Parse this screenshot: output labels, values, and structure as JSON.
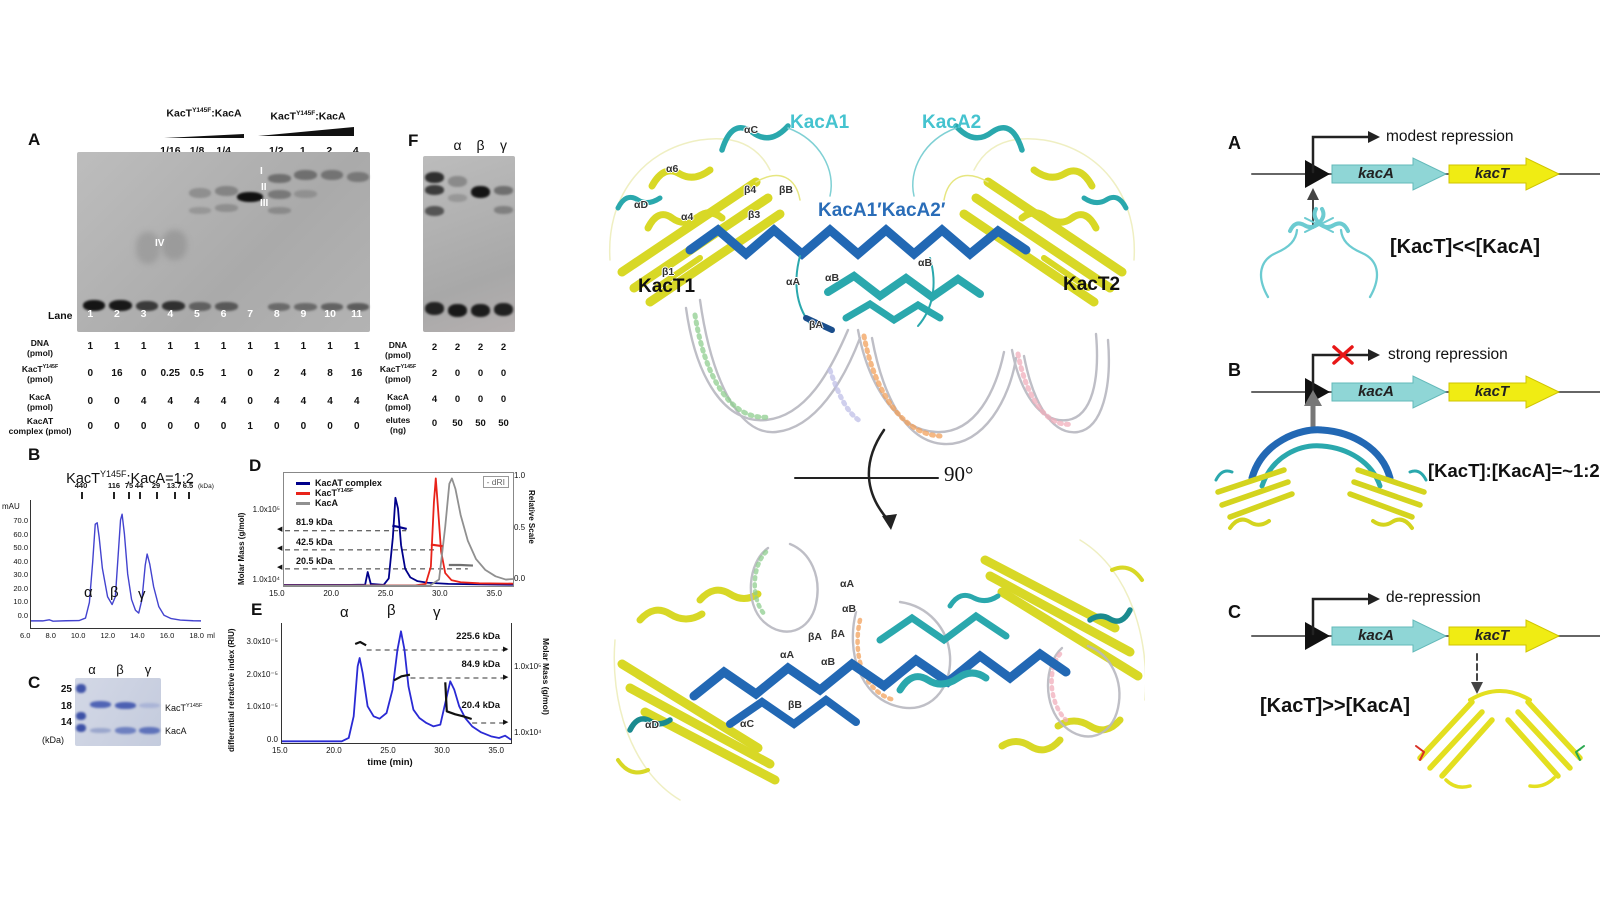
{
  "panels": {
    "A": "A",
    "B": "B",
    "C": "C",
    "D": "D",
    "E": "E",
    "F": "F"
  },
  "panelA": {
    "titration1": {
      "pre": "KacT",
      "sup": "Y145F",
      "post": ":KacA"
    },
    "titration2": {
      "pre": "KacT",
      "sup": "Y145F",
      "post": ":KacA"
    },
    "ratios1": [
      "1/16",
      "1/8",
      "1/4"
    ],
    "ratios2": [
      "1/2",
      "1",
      "2",
      "4"
    ],
    "band_I": "I",
    "band_II": "II",
    "band_III": "III",
    "band_IV": "IV",
    "lane_word": "Lane",
    "lanes": [
      "1",
      "2",
      "3",
      "4",
      "5",
      "6",
      "7",
      "8",
      "9",
      "10",
      "11"
    ],
    "rows": [
      {
        "l1": "DNA",
        "sup": "",
        "l2": "(pmol)",
        "values": [
          "1",
          "1",
          "1",
          "1",
          "1",
          "1",
          "1",
          "1",
          "1",
          "1",
          "1"
        ]
      },
      {
        "l1": "KacT",
        "sup": "Y145F",
        "l2": "(pmol)",
        "values": [
          "0",
          "16",
          "0",
          "0.25",
          "0.5",
          "1",
          "0",
          "2",
          "4",
          "8",
          "16"
        ]
      },
      {
        "l1": "KacA",
        "sup": "",
        "l2": "(pmol)",
        "values": [
          "0",
          "0",
          "4",
          "4",
          "4",
          "4",
          "0",
          "4",
          "4",
          "4",
          "4"
        ]
      },
      {
        "l1": "KacAT",
        "sup": "",
        "l2": "complex (pmol)",
        "values": [
          "0",
          "0",
          "0",
          "0",
          "0",
          "0",
          "1",
          "0",
          "0",
          "0",
          "0"
        ]
      }
    ]
  },
  "panelF": {
    "lane_headers": [
      "α",
      "β",
      "γ"
    ],
    "rows": [
      {
        "l1": "DNA",
        "sup": "",
        "l2": "(pmol)",
        "values": [
          "2",
          "2",
          "2",
          "2"
        ]
      },
      {
        "l1": "KacT",
        "sup": "Y145F",
        "l2": "(pmol)",
        "values": [
          "2",
          "0",
          "0",
          "0"
        ]
      },
      {
        "l1": "KacA",
        "sup": "",
        "l2": "(pmol)",
        "values": [
          "4",
          "0",
          "0",
          "0"
        ]
      },
      {
        "l1": "elutes",
        "sup": "",
        "l2": "(ng)",
        "values": [
          "0",
          "50",
          "50",
          "50"
        ]
      }
    ]
  },
  "panelC": {
    "lanes": [
      "α",
      "β",
      "γ"
    ],
    "markers": [
      "25",
      "18",
      "14"
    ],
    "unit": "(kDa)",
    "band1": {
      "pre": "KacT",
      "sup": "Y145F"
    },
    "band2": "KacA"
  },
  "structure": {
    "kacA1": "KacA1",
    "kacA2": "KacA2",
    "kacA_dimer": "KacA1′KacA2′",
    "kacT1": "KacT1",
    "kacT2": "KacT2",
    "rotation": "90°",
    "top_small": [
      "αC",
      "α6",
      "β4",
      "βB",
      "αD",
      "α4",
      "β3",
      "β1",
      "αA",
      "αB",
      "αB",
      "βA"
    ],
    "bottom_small": [
      "αA",
      "αB",
      "βA",
      "βA",
      "αA",
      "αB",
      "βB",
      "αC",
      "αD"
    ]
  },
  "models": {
    "A": {
      "label": "A",
      "outcome": "modest repression",
      "kacA": "kacA",
      "kacT": "kacT",
      "relation": "[KacT]<<[KacA]"
    },
    "B": {
      "label": "B",
      "outcome": "strong repression",
      "kacA": "kacA",
      "kacT": "kacT",
      "relation": "[KacT]:[KacA]=~1:2"
    },
    "C": {
      "label": "C",
      "outcome": "de-repression",
      "kacA": "kacA",
      "kacT": "kacT",
      "relation": "[KacT]>>[KacA]"
    }
  },
  "colors": {
    "kacA_gene": "#8fd6d6",
    "kacT_gene": "#f0ec13",
    "structure_yellow": "#d8d826",
    "structure_teal": "#2aa8ad",
    "structure_blue": "#2268b4",
    "uv_trace": "#4343cf",
    "mals_blue": "#00008b",
    "mals_red": "#e8231a",
    "mals_gray": "#909090",
    "x_mark_red": "#e81717"
  },
  "chart_data": [
    {
      "id": "panelB-sec",
      "type": "line",
      "title": {
        "pre": "KacT",
        "sup": "Y145F",
        "post": ":KacA=1:2"
      },
      "ylabel": "mAU",
      "xunit": "ml",
      "marker_unit": "(kDa)",
      "yticks": [
        "70.0",
        "60.0",
        "50.0",
        "40.0",
        "30.0",
        "20.0",
        "10.0",
        "0.0"
      ],
      "xticks": [
        "6.0",
        "8.0",
        "10.0",
        "12.0",
        "14.0",
        "16.0",
        "18.0"
      ],
      "markers": [
        "440",
        "116",
        "75",
        "44",
        "29",
        "13.7",
        "6.5"
      ],
      "marker_ml": [
        9.7,
        12.2,
        13.3,
        14.1,
        15.4,
        16.8,
        17.9
      ],
      "peaks": [
        "α",
        "β",
        "γ"
      ],
      "xlim": [
        5.7,
        18.8
      ],
      "ylim": [
        -4,
        86
      ],
      "series": [
        {
          "name": "uv-trace",
          "color": "#4343cf",
          "width": 1.4,
          "points": [
            [
              5.7,
              1
            ],
            [
              6.6,
              1
            ],
            [
              7.1,
              1.8
            ],
            [
              7.4,
              0.8
            ],
            [
              8.4,
              1.1
            ],
            [
              9.4,
              1.2
            ],
            [
              9.9,
              3
            ],
            [
              10.2,
              14
            ],
            [
              10.45,
              42
            ],
            [
              10.65,
              69
            ],
            [
              10.8,
              70
            ],
            [
              10.95,
              60
            ],
            [
              11.2,
              38
            ],
            [
              11.6,
              18
            ],
            [
              11.95,
              12.5
            ],
            [
              12.2,
              18
            ],
            [
              12.4,
              45
            ],
            [
              12.6,
              72
            ],
            [
              12.72,
              76
            ],
            [
              12.9,
              62
            ],
            [
              13.15,
              34
            ],
            [
              13.45,
              16
            ],
            [
              13.75,
              8.5
            ],
            [
              14,
              6.5
            ],
            [
              14.25,
              16
            ],
            [
              14.5,
              40
            ],
            [
              14.65,
              48
            ],
            [
              14.85,
              41
            ],
            [
              15.15,
              25
            ],
            [
              15.55,
              11
            ],
            [
              15.95,
              5
            ],
            [
              16.5,
              2.6
            ],
            [
              17.2,
              1.6
            ],
            [
              18.2,
              1.1
            ],
            [
              18.8,
              1
            ]
          ]
        }
      ]
    },
    {
      "id": "panelD-mals",
      "type": "line",
      "legend": [
        {
          "pre": "KacAT complex",
          "sup": ""
        },
        {
          "pre": "KacT",
          "sup": "Y145F"
        },
        {
          "pre": "KacA",
          "sup": ""
        }
      ],
      "legend_colors": [
        "#00008b",
        "#e8231a",
        "#909090"
      ],
      "dri_box": "- dRI",
      "left_label": "Molar Mass (g/mol)",
      "left_ticks": [
        "1.0x10⁵",
        "1.0x10⁴"
      ],
      "right_label": "Relative Scale",
      "right_ticks": [
        "1.0",
        "0.5",
        "0.0"
      ],
      "annotations": [
        "81.9 kDa",
        "42.5 kDa",
        "20.5 kDa"
      ],
      "xticks": [
        "15.0",
        "20.0",
        "25.0",
        "30.0",
        "35.0"
      ],
      "xlim": [
        15,
        37.3
      ],
      "ylim": [
        0,
        105
      ],
      "series": [
        {
          "name": "dash-81.9",
          "color": "#333",
          "width": 1,
          "dash": "5 4",
          "points": [
            [
              15.1,
              51.3
            ],
            [
              26.9,
              51.3
            ]
          ]
        },
        {
          "name": "dash-42.5",
          "color": "#333",
          "width": 1,
          "dash": "5 4",
          "points": [
            [
              15.1,
              33.6
            ],
            [
              29.9,
              33.6
            ]
          ]
        },
        {
          "name": "dash-20.5",
          "color": "#333",
          "width": 1,
          "dash": "5 4",
          "points": [
            [
              15.1,
              15.9
            ],
            [
              32.9,
              15.9
            ]
          ]
        },
        {
          "name": "kacat-complex",
          "color": "#00008b",
          "width": 1.8,
          "points": [
            [
              15,
              1
            ],
            [
              21.5,
              1
            ],
            [
              22.9,
              1.2
            ],
            [
              23.15,
              13
            ],
            [
              23.45,
              2
            ],
            [
              24.7,
              1
            ],
            [
              25.2,
              7
            ],
            [
              25.6,
              45
            ],
            [
              25.85,
              82
            ],
            [
              26.1,
              72
            ],
            [
              26.4,
              38
            ],
            [
              26.8,
              16
            ],
            [
              27.3,
              8
            ],
            [
              28,
              4.5
            ],
            [
              29,
              3
            ],
            [
              31,
              2
            ],
            [
              34,
              1.5
            ],
            [
              37.3,
              1.2
            ]
          ]
        },
        {
          "name": "kact-y145f",
          "color": "#e8231a",
          "width": 1.8,
          "points": [
            [
              15,
              0.6
            ],
            [
              27.8,
              0.6
            ],
            [
              28.8,
              2
            ],
            [
              29.3,
              18
            ],
            [
              29.6,
              78
            ],
            [
              29.78,
              100
            ],
            [
              30,
              72
            ],
            [
              30.3,
              32
            ],
            [
              30.7,
              12
            ],
            [
              31.3,
              5.5
            ],
            [
              32.2,
              3.5
            ],
            [
              34,
              2.5
            ],
            [
              37.3,
              2.2
            ]
          ]
        },
        {
          "name": "kaca",
          "color": "#909090",
          "width": 1.8,
          "points": [
            [
              15,
              0.3
            ],
            [
              29.2,
              0.3
            ],
            [
              30.1,
              6
            ],
            [
              30.7,
              55
            ],
            [
              31.1,
              95
            ],
            [
              31.35,
              100
            ],
            [
              31.7,
              90
            ],
            [
              32.2,
              66
            ],
            [
              32.9,
              42
            ],
            [
              33.7,
              25
            ],
            [
              34.6,
              15
            ],
            [
              35.6,
              9
            ],
            [
              36.6,
              6
            ],
            [
              37.3,
              6.5
            ]
          ]
        },
        {
          "name": "mass-81.9",
          "color": "#00008b",
          "width": 2.2,
          "points": [
            [
              25.55,
              56
            ],
            [
              26.1,
              55
            ],
            [
              26.95,
              53
            ]
          ]
        },
        {
          "name": "mass-42.5",
          "color": "#e8231a",
          "width": 2.2,
          "points": [
            [
              29.3,
              38.5
            ],
            [
              30.45,
              37
            ]
          ]
        },
        {
          "name": "mass-20.5",
          "color": "#707070",
          "width": 2.2,
          "points": [
            [
              31.05,
              19.5
            ],
            [
              32.2,
              19.5
            ],
            [
              33.4,
              19
            ]
          ]
        }
      ]
    },
    {
      "id": "panelE-mals",
      "type": "line",
      "peaks": [
        "α",
        "β",
        "γ"
      ],
      "left_label": "differential refractive index (RIU)",
      "left_ticks": [
        "3.0x10⁻⁵",
        "2.0x10⁻⁵",
        "1.0x10⁻⁵",
        "0.0"
      ],
      "right_label": "Molar Mass (g/mol)",
      "right_ticks": [
        "1.0x10⁵",
        "1.0x10⁴"
      ],
      "xlabel": "time (min)",
      "xticks": [
        "15.0",
        "20.0",
        "25.0",
        "30.0",
        "35.0"
      ],
      "annotations": [
        "225.6 kDa",
        "84.9 kDa",
        "20.4 kDa"
      ],
      "xlim": [
        14.5,
        37.5
      ],
      "ylim": [
        0,
        3.6
      ],
      "series": [
        {
          "name": "dash-225.6",
          "color": "#333",
          "width": 1,
          "dash": "5 4",
          "points": [
            [
              23,
              2.79
            ],
            [
              37.1,
              2.79
            ]
          ]
        },
        {
          "name": "dash-84.9",
          "color": "#333",
          "width": 1,
          "dash": "5 4",
          "points": [
            [
              27.4,
              1.95
            ],
            [
              37.1,
              1.95
            ]
          ]
        },
        {
          "name": "dash-20.4",
          "color": "#333",
          "width": 1,
          "dash": "5 4",
          "points": [
            [
              33.6,
              0.6
            ],
            [
              37.1,
              0.6
            ]
          ]
        },
        {
          "name": "dri-trace",
          "color": "#2a2ad4",
          "width": 1.8,
          "points": [
            [
              14.5,
              0.05
            ],
            [
              20.5,
              0.05
            ],
            [
              21.2,
              0.15
            ],
            [
              21.7,
              0.8
            ],
            [
              22.1,
              2.3
            ],
            [
              22.3,
              2.55
            ],
            [
              22.6,
              2.1
            ],
            [
              23.1,
              1.1
            ],
            [
              23.7,
              0.8
            ],
            [
              24.3,
              0.73
            ],
            [
              25,
              0.9
            ],
            [
              25.6,
              1.6
            ],
            [
              26.1,
              2.8
            ],
            [
              26.45,
              3.35
            ],
            [
              26.8,
              2.8
            ],
            [
              27.2,
              1.7
            ],
            [
              27.7,
              1
            ],
            [
              28.3,
              0.75
            ],
            [
              29,
              0.6
            ],
            [
              29.7,
              0.5
            ],
            [
              30.4,
              0.55
            ],
            [
              30.9,
              1.2
            ],
            [
              31.4,
              1.85
            ],
            [
              31.8,
              1.6
            ],
            [
              32.3,
              1.1
            ],
            [
              32.9,
              0.75
            ],
            [
              33.6,
              0.5
            ],
            [
              34.5,
              0.32
            ],
            [
              35.5,
              0.2
            ],
            [
              36.3,
              0.15
            ],
            [
              36.9,
              0.22
            ],
            [
              37.5,
              0.1
            ]
          ]
        },
        {
          "name": "mass-225.6",
          "color": "#111",
          "width": 2.2,
          "points": [
            [
              21.85,
              2.97
            ],
            [
              22.35,
              3.03
            ],
            [
              22.95,
              2.93
            ]
          ]
        },
        {
          "name": "mass-84.9",
          "color": "#111",
          "width": 2.2,
          "points": [
            [
              25.75,
              1.88
            ],
            [
              26.5,
              2
            ],
            [
              27.35,
              2.05
            ]
          ]
        },
        {
          "name": "mass-20.4",
          "color": "#111",
          "width": 2.2,
          "points": [
            [
              30.9,
              1.82
            ],
            [
              31.05,
              0.95
            ],
            [
              31.9,
              0.86
            ],
            [
              32.7,
              0.8
            ],
            [
              33.55,
              0.72
            ]
          ]
        }
      ]
    }
  ]
}
